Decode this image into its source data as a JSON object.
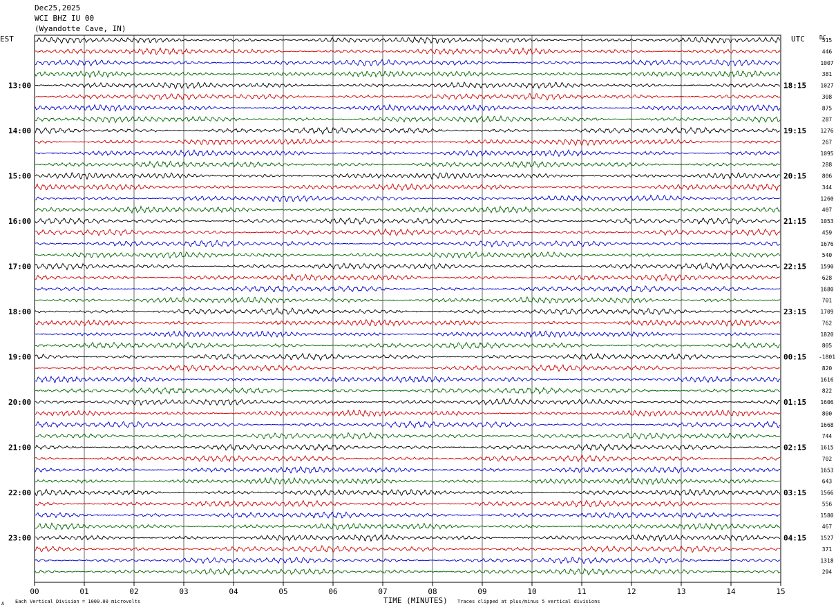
{
  "header": {
    "date": "Dec25,2025",
    "station": "WCI BHZ IU 00",
    "location": "(Wyandotte Cave, IN)"
  },
  "left_tz": "EST",
  "right_tz": "UTC",
  "dc_label": "DC",
  "footer": {
    "xlabel": "TIME (MINUTES)",
    "scale_note": "Each Vertical Division = 1000.00 microvolts",
    "clip_note": "Traces clipped at plus/minus 5 vertical divisions",
    "corner_mark": "A"
  },
  "chart_data": {
    "type": "line",
    "title": "",
    "xlabel": "TIME (MINUTES)",
    "ylabel": "",
    "xlim": [
      0,
      15
    ],
    "x_ticks": [
      "00",
      "01",
      "02",
      "03",
      "04",
      "05",
      "06",
      "07",
      "08",
      "09",
      "10",
      "11",
      "12",
      "13",
      "14",
      "15"
    ],
    "grid": true,
    "trace_colors": [
      "#000000",
      "#d00000",
      "#0000cc",
      "#006600"
    ],
    "left_hour_labels": [
      "13:00",
      "14:00",
      "15:00",
      "16:00",
      "17:00",
      "18:00",
      "19:00",
      "20:00",
      "21:00",
      "22:00",
      "23:00"
    ],
    "right_hour_labels": [
      "18:15",
      "19:15",
      "20:15",
      "21:15",
      "22:15",
      "23:15",
      "00:15",
      "01:15",
      "02:15",
      "03:15",
      "04:15"
    ],
    "dc_offsets": [
      "515",
      "446",
      "1007",
      "381",
      "1027",
      "308",
      "875",
      "287",
      "1276",
      "267",
      "1095",
      "288",
      "806",
      "344",
      "1260",
      "407",
      "1053",
      "459",
      "1676",
      "540",
      "1590",
      "628",
      "1680",
      "701",
      "1709",
      "762",
      "1820",
      "805",
      "-1801",
      "820",
      "1616",
      "822",
      "1606",
      "800",
      "1668",
      "744",
      "1615",
      "702",
      "1653",
      "643",
      "1566",
      "556",
      "1580",
      "467",
      "1527",
      "371",
      "1318",
      "294"
    ]
  }
}
